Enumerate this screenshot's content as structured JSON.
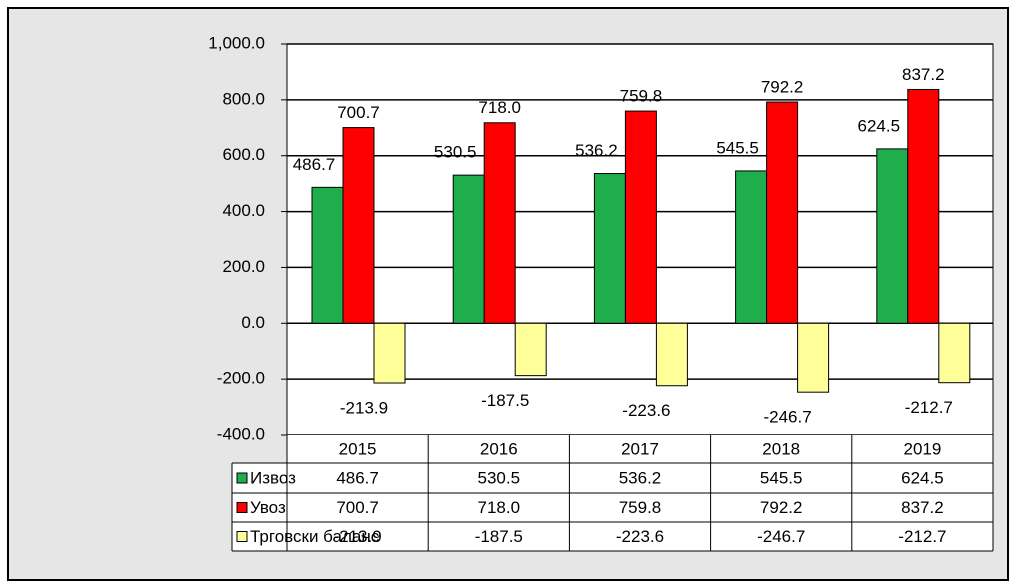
{
  "chart_data": {
    "type": "bar",
    "categories": [
      "2015",
      "2016",
      "2017",
      "2018",
      "2019"
    ],
    "series": [
      {
        "name": "Извоз",
        "color": "#1fae4c",
        "values": [
          486.7,
          530.5,
          536.2,
          545.5,
          624.5
        ],
        "value_labels": [
          "486.7",
          "530.5",
          "536.2",
          "545.5",
          "624.5"
        ]
      },
      {
        "name": "Увоз",
        "color": "#ff0000",
        "values": [
          700.7,
          718.0,
          759.8,
          792.2,
          837.2
        ],
        "value_labels": [
          "700.7",
          "718.0",
          "759.8",
          "792.2",
          "837.2"
        ]
      },
      {
        "name": "Трговски баланс",
        "color": "#ffff99",
        "values": [
          -213.9,
          -187.5,
          -223.6,
          -246.7,
          -212.7
        ],
        "value_labels": [
          "-213.9",
          "-187.5",
          "-223.6",
          "-246.7",
          "-212.7"
        ]
      }
    ],
    "ylim": [
      -400,
      1000
    ],
    "yticks": [
      {
        "value": -400,
        "label": "-400.0"
      },
      {
        "value": -200,
        "label": "-200.0"
      },
      {
        "value": 0,
        "label": "0.0"
      },
      {
        "value": 200,
        "label": "200.0"
      },
      {
        "value": 400,
        "label": "400.0"
      },
      {
        "value": 600,
        "label": "600.0"
      },
      {
        "value": 800,
        "label": "800.0"
      },
      {
        "value": 1000,
        "label": "1,000.0"
      }
    ],
    "grid": true
  }
}
